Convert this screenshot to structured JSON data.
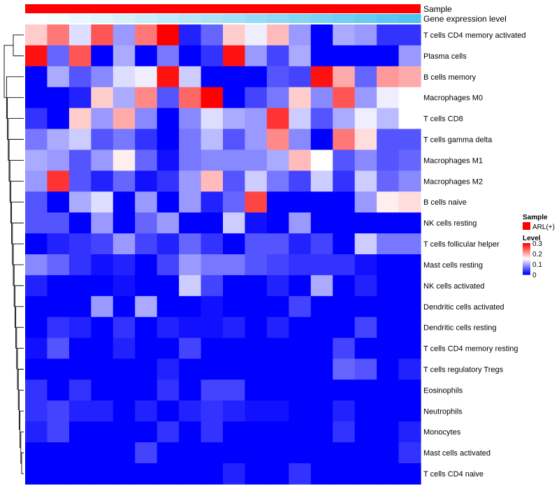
{
  "chart_data": {
    "type": "heatmap",
    "rows": [
      "T cells CD4 memory activated",
      "Plasma cells",
      "B cells memory",
      "Macrophages M0",
      "T cells CD8",
      "T cells gamma delta",
      "Macrophages M1",
      "Macrophages M2",
      "B cells naive",
      "NK cells resting",
      "T cells follicular helper",
      "Mast cells resting",
      "NK cells activated",
      "Dendritic cells activated",
      "Dendritic cells resting",
      "T cells CD4 memory resting",
      "T cells regulatory  Tregs",
      "Eosinophils",
      "Neutrophils",
      "Monocytes",
      "Mast cells activated",
      "T cells CD4 naive"
    ],
    "n_columns": 18,
    "values": [
      [
        0.18,
        0.23,
        0.13,
        0.25,
        0.09,
        0.23,
        0.3,
        0.02,
        0.06,
        0.18,
        0.14,
        0.19,
        0.09,
        0.0,
        0.1,
        0.09,
        0.03,
        null
      ],
      [
        0.29,
        0.06,
        0.25,
        0.0,
        0.1,
        0.0,
        0.07,
        0.0,
        0.03,
        0.29,
        0.09,
        0.04,
        0.1,
        0.0,
        0.0,
        0.0,
        0.0,
        0.09
      ],
      [
        0.0,
        0.1,
        0.05,
        0.08,
        0.13,
        0.14,
        0.29,
        0.12,
        0.0,
        0.0,
        0.0,
        0.05,
        0.04,
        0.29,
        0.2,
        0.06,
        0.21,
        null
      ],
      [
        0.0,
        0.0,
        0.02,
        0.18,
        0.1,
        0.22,
        0.05,
        0.24,
        0.3,
        0.0,
        0.04,
        0.07,
        0.18,
        0.08,
        0.25,
        0.09,
        0.14,
        null
      ],
      [
        0.03,
        0.0,
        0.18,
        0.09,
        0.2,
        0.08,
        0.0,
        0.08,
        0.13,
        0.1,
        0.09,
        0.27,
        0.12,
        0.05,
        0.1,
        0.14,
        0.11,
        null
      ],
      [
        0.07,
        0.1,
        0.12,
        0.05,
        0.07,
        0.03,
        0.0,
        0.07,
        0.11,
        0.05,
        0.09,
        0.22,
        0.08,
        0.0,
        0.23,
        0.17,
        0.05,
        null
      ],
      [
        0.1,
        0.09,
        0.05,
        0.09,
        0.16,
        0.06,
        0.01,
        0.07,
        0.08,
        0.08,
        0.08,
        0.1,
        0.19,
        0.15,
        0.05,
        0.08,
        0.05,
        null
      ],
      [
        0.09,
        0.27,
        0.05,
        0.02,
        0.06,
        0.01,
        0.03,
        0.09,
        0.19,
        0.05,
        0.12,
        0.07,
        0.04,
        0.12,
        0.03,
        0.12,
        0.06,
        null
      ],
      [
        0.05,
        0.0,
        0.1,
        0.13,
        0.0,
        0.09,
        0.0,
        0.09,
        0.02,
        0.06,
        0.26,
        0.0,
        0.0,
        0.0,
        0.0,
        0.09,
        0.16,
        null
      ],
      [
        0.05,
        0.05,
        0.0,
        0.09,
        0.0,
        0.06,
        0.09,
        0.0,
        0.0,
        0.12,
        0.01,
        0.0,
        0.09,
        0.0,
        0.0,
        0.0,
        0.0,
        null
      ],
      [
        0.0,
        0.02,
        0.03,
        0.04,
        0.09,
        0.04,
        0.02,
        0.06,
        0.03,
        0.0,
        0.05,
        0.05,
        0.02,
        0.04,
        0.0,
        0.12,
        0.07,
        null
      ],
      [
        0.08,
        0.06,
        0.03,
        0.01,
        0.02,
        0.0,
        0.04,
        0.09,
        0.07,
        0.07,
        0.05,
        0.04,
        0.03,
        0.03,
        0.03,
        0.01,
        0.0,
        null
      ],
      [
        0.02,
        0.0,
        0.0,
        0.0,
        0.01,
        0.0,
        0.0,
        0.12,
        0.04,
        0.0,
        0.0,
        0.02,
        0.0,
        0.1,
        0.0,
        0.02,
        0.0,
        null
      ],
      [
        0.0,
        0.0,
        0.0,
        0.09,
        0.0,
        0.1,
        0.0,
        0.0,
        0.01,
        0.0,
        0.0,
        0.0,
        0.04,
        0.0,
        0.0,
        0.0,
        0.0,
        null
      ],
      [
        0.0,
        0.03,
        0.02,
        0.0,
        0.03,
        0.0,
        0.02,
        0.01,
        0.01,
        0.02,
        0.0,
        0.02,
        0.0,
        0.0,
        0.0,
        0.04,
        0.0,
        null
      ],
      [
        0.01,
        0.05,
        0.0,
        0.0,
        0.02,
        0.0,
        0.0,
        0.04,
        0.0,
        0.0,
        0.0,
        0.0,
        0.0,
        0.0,
        0.04,
        0.0,
        0.0,
        null
      ],
      [
        0.0,
        0.0,
        0.0,
        0.0,
        0.0,
        0.0,
        0.02,
        0.0,
        0.0,
        0.0,
        0.0,
        0.0,
        0.0,
        0.0,
        0.06,
        0.05,
        0.0,
        null
      ],
      [
        0.03,
        0.0,
        0.03,
        0.0,
        0.0,
        0.0,
        0.03,
        0.0,
        0.04,
        0.04,
        0.0,
        0.0,
        0.0,
        0.0,
        0.0,
        0.0,
        0.0,
        null
      ],
      [
        0.03,
        0.04,
        0.02,
        0.02,
        0.0,
        0.02,
        0.0,
        0.02,
        0.03,
        0.02,
        0.01,
        0.01,
        0.0,
        0.0,
        0.02,
        0.0,
        0.0,
        null
      ],
      [
        0.02,
        0.04,
        0.0,
        0.0,
        0.0,
        0.0,
        0.03,
        0.0,
        0.03,
        0.0,
        0.0,
        0.0,
        0.0,
        0.0,
        0.03,
        0.0,
        0.0,
        null
      ],
      [
        0.0,
        0.0,
        0.0,
        0.0,
        0.0,
        0.04,
        0.0,
        0.0,
        0.0,
        0.0,
        0.0,
        0.0,
        0.0,
        0.0,
        0.0,
        0.0,
        0.0,
        null
      ],
      [
        0.0,
        0.0,
        0.0,
        0.0,
        0.0,
        0.0,
        0.0,
        0.0,
        0.0,
        0.02,
        0.0,
        0.0,
        0.03,
        0.0,
        0.0,
        0.0,
        0.0,
        null
      ]
    ],
    "last_column_values": [
      0.03,
      0.09,
      0.2,
      0.15,
      0.15,
      0.05,
      0.06,
      0.08,
      0.17,
      0.0,
      0.07,
      0.0,
      0.0,
      0.0,
      0.0,
      0.0,
      0.02,
      0.0,
      0.0,
      0.02,
      0.03,
      0.0
    ],
    "annotations": [
      {
        "name": "Sample",
        "color": "#ff0000"
      },
      {
        "name": "Gene expression level",
        "gradient": [
          "#ffffff",
          "#4fc4f0"
        ]
      }
    ],
    "legend": {
      "sample_title": "Sample",
      "sample_entry": "ARL(+)",
      "sample_color": "#ff0000",
      "level_title": "Level",
      "level_ticks": [
        "0.3",
        "0.2",
        "0.1",
        "0"
      ],
      "level_tick_values": [
        0.3,
        0.2,
        0.1,
        0
      ],
      "range": [
        0,
        0.3
      ],
      "colors": {
        "low": "#0000ff",
        "mid": "#ffffff",
        "high": "#ff0000"
      }
    }
  }
}
